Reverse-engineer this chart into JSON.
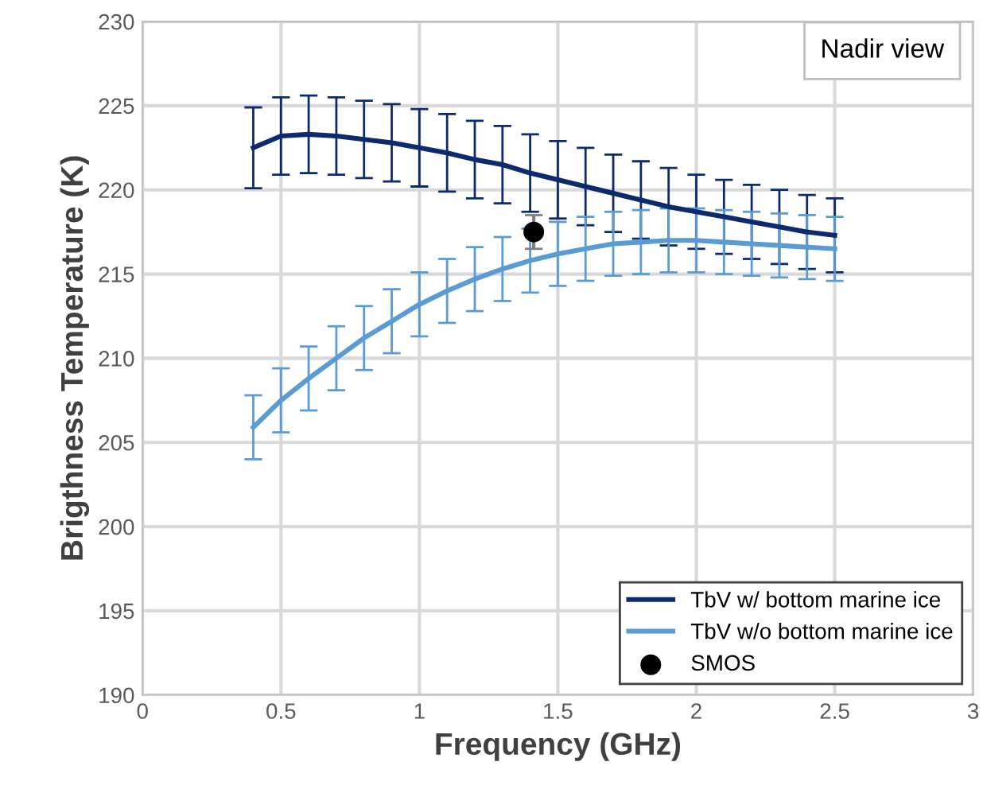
{
  "chart_data": {
    "type": "line",
    "xlabel": "Frequency (GHz)",
    "ylabel": "Brigthness Temperature (K)",
    "x": [
      0.4,
      0.5,
      0.6,
      0.7,
      0.8,
      0.9,
      1.0,
      1.1,
      1.2,
      1.3,
      1.4,
      1.5,
      1.6,
      1.7,
      1.8,
      1.9,
      2.0,
      2.1,
      2.2,
      2.3,
      2.4,
      2.5
    ],
    "series": [
      {
        "name": "TbV w/ bottom marine ice",
        "color": "#0e2a6e",
        "values": [
          222.5,
          223.2,
          223.3,
          223.2,
          223.0,
          222.8,
          222.5,
          222.2,
          221.8,
          221.5,
          221.0,
          220.6,
          220.2,
          219.8,
          219.4,
          219.0,
          218.7,
          218.4,
          218.1,
          217.8,
          217.5,
          217.3
        ],
        "errors": [
          2.4,
          2.3,
          2.3,
          2.3,
          2.3,
          2.3,
          2.3,
          2.3,
          2.3,
          2.3,
          2.3,
          2.3,
          2.3,
          2.3,
          2.3,
          2.3,
          2.2,
          2.2,
          2.2,
          2.2,
          2.2,
          2.2
        ]
      },
      {
        "name": "TbV w/o bottom marine ice",
        "color": "#5b9bd5",
        "values": [
          205.9,
          207.5,
          208.8,
          210.0,
          211.2,
          212.2,
          213.2,
          214.0,
          214.7,
          215.3,
          215.8,
          216.2,
          216.5,
          216.8,
          216.9,
          217.0,
          217.0,
          216.9,
          216.8,
          216.7,
          216.6,
          216.5
        ],
        "errors": [
          1.9,
          1.9,
          1.9,
          1.9,
          1.9,
          1.9,
          1.9,
          1.9,
          1.9,
          1.9,
          1.9,
          1.9,
          1.9,
          1.9,
          1.9,
          1.9,
          1.9,
          1.9,
          1.9,
          1.9,
          1.9,
          1.9
        ]
      },
      {
        "name": "SMOS",
        "type": "scatter",
        "marker": "circle",
        "color": "#000000",
        "x": [
          1.413
        ],
        "values": [
          217.5
        ],
        "errors": [
          1.0
        ]
      }
    ],
    "xlim": [
      0,
      3
    ],
    "ylim": [
      190,
      230
    ],
    "xticks": [
      0,
      0.5,
      1,
      1.5,
      2,
      2.5,
      3
    ],
    "yticks": [
      190,
      195,
      200,
      205,
      210,
      215,
      220,
      225,
      230
    ],
    "grid": true,
    "legend": "bottom right",
    "marker": "none",
    "annotations": [
      "Nadir view"
    ]
  }
}
